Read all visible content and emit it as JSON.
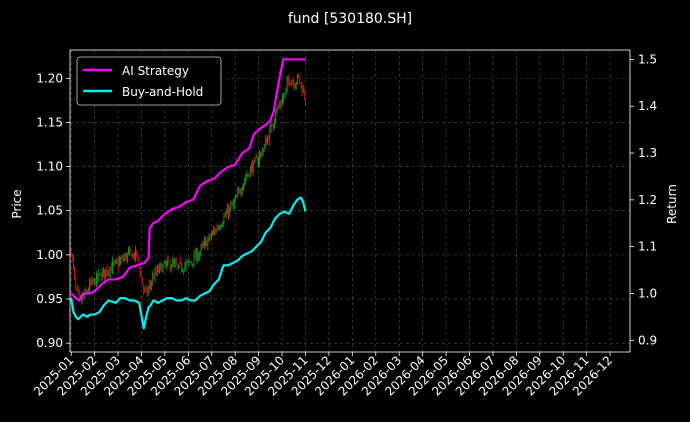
{
  "chart_data": {
    "type": "line",
    "title": "fund [530180.SH]",
    "ylabel": "Price",
    "y2label": "Return",
    "ylim": [
      0.89,
      1.232
    ],
    "y2lim": [
      0.875,
      1.52
    ],
    "yticks": [
      "0.90",
      "0.95",
      "1.00",
      "1.05",
      "1.10",
      "1.15",
      "1.20"
    ],
    "y2ticks": [
      "0.9",
      "1.0",
      "1.1",
      "1.2",
      "1.3",
      "1.4",
      "1.5"
    ],
    "xticks": [
      "2025-01",
      "2025-02",
      "2025-03",
      "2025-04",
      "2025-05",
      "2025-06",
      "2025-07",
      "2025-08",
      "2025-09",
      "2025-10",
      "2025-11",
      "2025-12",
      "2026-01",
      "2026-02",
      "2026-03",
      "2026-04",
      "2026-05",
      "2026-06",
      "2026-07",
      "2026-08",
      "2026-09",
      "2026-10",
      "2026-11",
      "2026-12"
    ],
    "xlim": [
      -0.05,
      23.85
    ],
    "grid": true,
    "legend": "top-left",
    "colors": {
      "ai": "#ff00ff",
      "bh": "#00f0f0",
      "up": "#22aa22",
      "down": "#dd2211",
      "grid": "#555555"
    },
    "series": [
      {
        "name": "AI Strategy",
        "axis": "right",
        "x": [
          0.0,
          0.1,
          0.2,
          0.35,
          0.5,
          0.7,
          0.8,
          1.0,
          1.3,
          1.6,
          1.9,
          2.2,
          2.5,
          2.8,
          3.1,
          3.3,
          3.35,
          3.5,
          3.7,
          4.0,
          4.3,
          4.6,
          4.9,
          5.2,
          5.5,
          5.8,
          6.1,
          6.4,
          6.7,
          7.0,
          7.3,
          7.6,
          7.8,
          8.0,
          8.3,
          8.5,
          8.65,
          8.85,
          9.05,
          9.3,
          9.6,
          10.0
        ],
        "values": [
          1.0,
          0.995,
          0.99,
          0.985,
          1.0,
          1.0,
          1.0,
          1.005,
          1.02,
          1.03,
          1.03,
          1.035,
          1.055,
          1.06,
          1.065,
          1.075,
          1.14,
          1.15,
          1.155,
          1.17,
          1.18,
          1.185,
          1.195,
          1.2,
          1.23,
          1.24,
          1.245,
          1.26,
          1.27,
          1.275,
          1.3,
          1.31,
          1.34,
          1.35,
          1.36,
          1.37,
          1.39,
          1.45,
          1.5,
          1.5,
          1.5,
          1.5
        ]
      },
      {
        "name": "Buy-and-Hold",
        "axis": "right",
        "x": [
          0.0,
          0.1,
          0.2,
          0.3,
          0.5,
          0.7,
          0.8,
          1.0,
          1.2,
          1.4,
          1.6,
          1.9,
          2.1,
          2.3,
          2.5,
          2.7,
          2.9,
          3.1,
          3.2,
          3.3,
          3.4,
          3.5,
          3.7,
          3.9,
          4.1,
          4.3,
          4.5,
          4.7,
          4.9,
          5.1,
          5.3,
          5.5,
          5.7,
          5.9,
          6.1,
          6.3,
          6.5,
          6.7,
          6.9,
          7.1,
          7.3,
          7.5,
          7.7,
          7.9,
          8.1,
          8.3,
          8.5,
          8.7,
          8.9,
          9.1,
          9.3,
          9.5,
          9.65,
          9.8,
          9.9,
          10.0
        ],
        "values": [
          0.99,
          0.96,
          0.95,
          0.945,
          0.955,
          0.95,
          0.955,
          0.955,
          0.96,
          0.975,
          0.985,
          0.98,
          0.99,
          0.99,
          0.985,
          0.985,
          0.98,
          0.925,
          0.95,
          0.97,
          0.975,
          0.985,
          0.98,
          0.985,
          0.99,
          0.99,
          0.985,
          0.985,
          0.99,
          0.985,
          0.985,
          0.995,
          1.0,
          1.005,
          1.02,
          1.03,
          1.06,
          1.06,
          1.065,
          1.07,
          1.08,
          1.085,
          1.09,
          1.1,
          1.11,
          1.13,
          1.14,
          1.16,
          1.17,
          1.175,
          1.17,
          1.19,
          1.2,
          1.205,
          1.195,
          1.175
        ]
      }
    ],
    "price_anchor": {
      "name": "Price",
      "axis": "left",
      "x": [
        0.0,
        0.2,
        0.4,
        0.8,
        1.2,
        1.6,
        2.0,
        2.4,
        2.8,
        3.1,
        3.2,
        3.5,
        3.8,
        4.2,
        4.6,
        5.0,
        5.4,
        5.8,
        6.2,
        6.6,
        7.0,
        7.3,
        7.6,
        7.9,
        8.2,
        8.5,
        8.7,
        8.9,
        9.1,
        9.3,
        9.5,
        9.7,
        9.9,
        10.0
      ],
      "values": [
        1.005,
        0.96,
        0.945,
        0.965,
        0.975,
        0.985,
        0.99,
        1.0,
        1.0,
        0.96,
        0.955,
        0.975,
        0.985,
        0.99,
        0.985,
        0.99,
        1.0,
        1.015,
        1.03,
        1.045,
        1.06,
        1.08,
        1.095,
        1.105,
        1.12,
        1.14,
        1.16,
        1.17,
        1.18,
        1.2,
        1.195,
        1.2,
        1.185,
        1.175
      ]
    }
  }
}
